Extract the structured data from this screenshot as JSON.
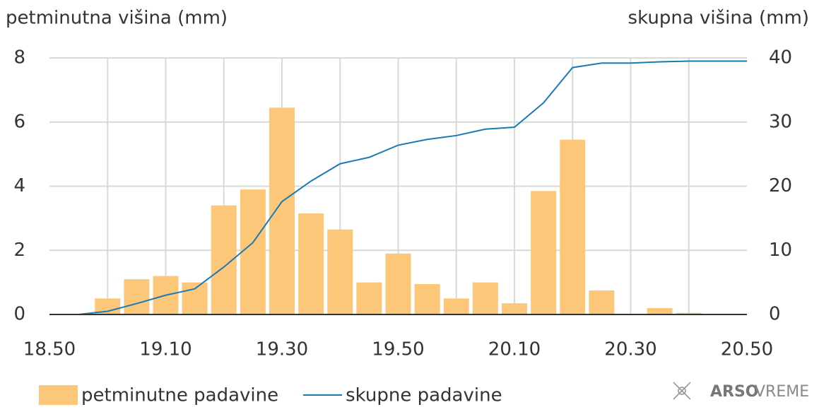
{
  "chart_data": {
    "type": "bar_line",
    "y_label": "petminutna višina (mm)",
    "y2_label": "skupna višina (mm)",
    "categories": [
      "18.50",
      null,
      null,
      null,
      "19.10",
      null,
      null,
      null,
      "19.30",
      null,
      null,
      null,
      "19.50",
      null,
      null,
      null,
      "20.10",
      null,
      null,
      null,
      "20.30",
      null,
      null,
      null,
      "20.50"
    ],
    "series": [
      {
        "name": "petminutne padavine",
        "color": "#fdc77a",
        "kind": "bar",
        "values": [
          0,
          0,
          0.5,
          1.1,
          1.2,
          1.0,
          3.4,
          3.9,
          6.45,
          3.15,
          2.65,
          1.0,
          1.9,
          0.95,
          0.5,
          1.0,
          0.35,
          3.85,
          5.45,
          0.75,
          0,
          0.2,
          0.05,
          0,
          0
        ]
      },
      {
        "name": "skupne padavine",
        "color": "#1a7ab5",
        "kind": "line",
        "axis": "y2",
        "values": [
          0,
          0,
          0.5,
          1.7,
          3.0,
          4.0,
          7.4,
          11.2,
          17.6,
          20.8,
          23.5,
          24.5,
          26.4,
          27.3,
          27.9,
          28.9,
          29.2,
          33.0,
          38.5,
          39.2,
          39.2,
          39.4,
          39.5,
          39.5,
          39.5
        ]
      }
    ],
    "ylim": [
      0,
      8
    ],
    "yticks": [
      0,
      2,
      4,
      6,
      8
    ],
    "y2lim": [
      0,
      40
    ],
    "y2ticks": [
      0,
      10,
      20,
      30,
      40
    ],
    "grid": true,
    "brand": {
      "bold": "ARSO",
      "light": "VREME"
    }
  }
}
